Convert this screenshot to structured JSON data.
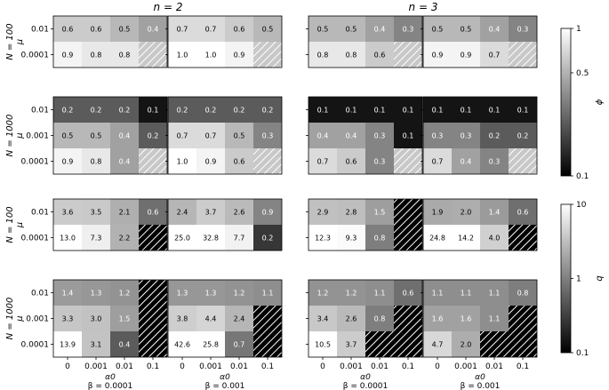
{
  "chart_data": {
    "type": "heatmap",
    "column_headers": [
      "n = 2",
      "n = 3"
    ],
    "x_tick_labels": [
      "0",
      "0.001",
      "0.01",
      "0.1"
    ],
    "x_axis_label": "α0",
    "panel_column_footers": [
      "β = 0.0001",
      "β = 0.001",
      "β = 0.0001",
      "β = 0.001"
    ],
    "y_axis_label": "μ",
    "colorbars": [
      {
        "label": "ϕ",
        "scale": "log",
        "range": [
          0.1,
          1
        ],
        "tick_labels": [
          "1",
          "0.5",
          "0.1"
        ]
      },
      {
        "label": "q",
        "scale": "log",
        "range": [
          0.1,
          10
        ],
        "tick_labels": [
          "10",
          "1",
          "0.1"
        ]
      }
    ],
    "hatched_color": "#7a7a7a",
    "rows": [
      {
        "metric": "phi",
        "n_label": "N = 100",
        "mu_values": [
          "0.01",
          "0.0001"
        ],
        "panels": [
          [
            [
              "0.6",
              "0.6",
              "0.5",
              "0.4"
            ],
            [
              "0.9",
              "0.8",
              "0.8",
              null
            ]
          ],
          [
            [
              "0.7",
              "0.7",
              "0.6",
              "0.5"
            ],
            [
              "1.0",
              "1.0",
              "0.9",
              null
            ]
          ],
          [
            [
              "0.5",
              "0.5",
              "0.4",
              "0.3"
            ],
            [
              "0.8",
              "0.8",
              "0.6",
              null
            ]
          ],
          [
            [
              "0.5",
              "0.5",
              "0.4",
              "0.3"
            ],
            [
              "0.9",
              "0.9",
              "0.7",
              null
            ]
          ]
        ]
      },
      {
        "metric": "phi",
        "n_label": "N = 1000",
        "mu_values": [
          "0.01",
          "0.001",
          "0.0001"
        ],
        "panels": [
          [
            [
              "0.2",
              "0.2",
              "0.2",
              "0.1"
            ],
            [
              "0.5",
              "0.5",
              "0.4",
              "0.2"
            ],
            [
              "0.9",
              "0.8",
              "0.4",
              null
            ]
          ],
          [
            [
              "0.2",
              "0.2",
              "0.2",
              "0.2"
            ],
            [
              "0.7",
              "0.7",
              "0.5",
              "0.3"
            ],
            [
              "1.0",
              "0.9",
              "0.6",
              null
            ]
          ],
          [
            [
              "0.1",
              "0.1",
              "0.1",
              "0.1"
            ],
            [
              "0.4",
              "0.4",
              "0.3",
              "0.1"
            ],
            [
              "0.7",
              "0.6",
              "0.3",
              null
            ]
          ],
          [
            [
              "0.1",
              "0.1",
              "0.1",
              "0.1"
            ],
            [
              "0.3",
              "0.3",
              "0.2",
              "0.2"
            ],
            [
              "0.7",
              "0.4",
              "0.3",
              null
            ]
          ]
        ]
      },
      {
        "metric": "q",
        "n_label": "N = 100",
        "mu_values": [
          "0.01",
          "0.0001"
        ],
        "panels": [
          [
            [
              "3.6",
              "3.5",
              "2.1",
              "0.6"
            ],
            [
              "13.0",
              "7.3",
              "2.2",
              null
            ]
          ],
          [
            [
              "2.4",
              "3.7",
              "2.6",
              "0.9"
            ],
            [
              "25.0",
              "32.8",
              "7.7",
              "0.2"
            ]
          ],
          [
            [
              "2.9",
              "2.8",
              "1.5",
              null
            ],
            [
              "12.3",
              "9.3",
              "0.8",
              null
            ]
          ],
          [
            [
              "1.9",
              "2.0",
              "1.4",
              "0.6"
            ],
            [
              "24.8",
              "14.2",
              "4.0",
              null
            ]
          ]
        ]
      },
      {
        "metric": "q",
        "n_label": "N = 1000",
        "mu_values": [
          "0.01",
          "0.001",
          "0.0001"
        ],
        "panels": [
          [
            [
              "1.4",
              "1.3",
              "1.2",
              null
            ],
            [
              "3.3",
              "3.0",
              "1.5",
              null
            ],
            [
              "13.9",
              "3.1",
              "0.4",
              null
            ]
          ],
          [
            [
              "1.3",
              "1.3",
              "1.2",
              "1.1"
            ],
            [
              "3.8",
              "4.4",
              "2.4",
              null
            ],
            [
              "42.6",
              "25.8",
              "0.7",
              null
            ]
          ],
          [
            [
              "1.2",
              "1.2",
              "1.1",
              "0.6"
            ],
            [
              "3.4",
              "2.6",
              "0.8",
              null
            ],
            [
              "10.5",
              "3.7",
              null,
              null
            ]
          ],
          [
            [
              "1.1",
              "1.1",
              "1.1",
              "0.8"
            ],
            [
              "1.6",
              "1.6",
              "1.1",
              null
            ],
            [
              "4.7",
              "2.0",
              null,
              null
            ]
          ]
        ]
      }
    ]
  }
}
